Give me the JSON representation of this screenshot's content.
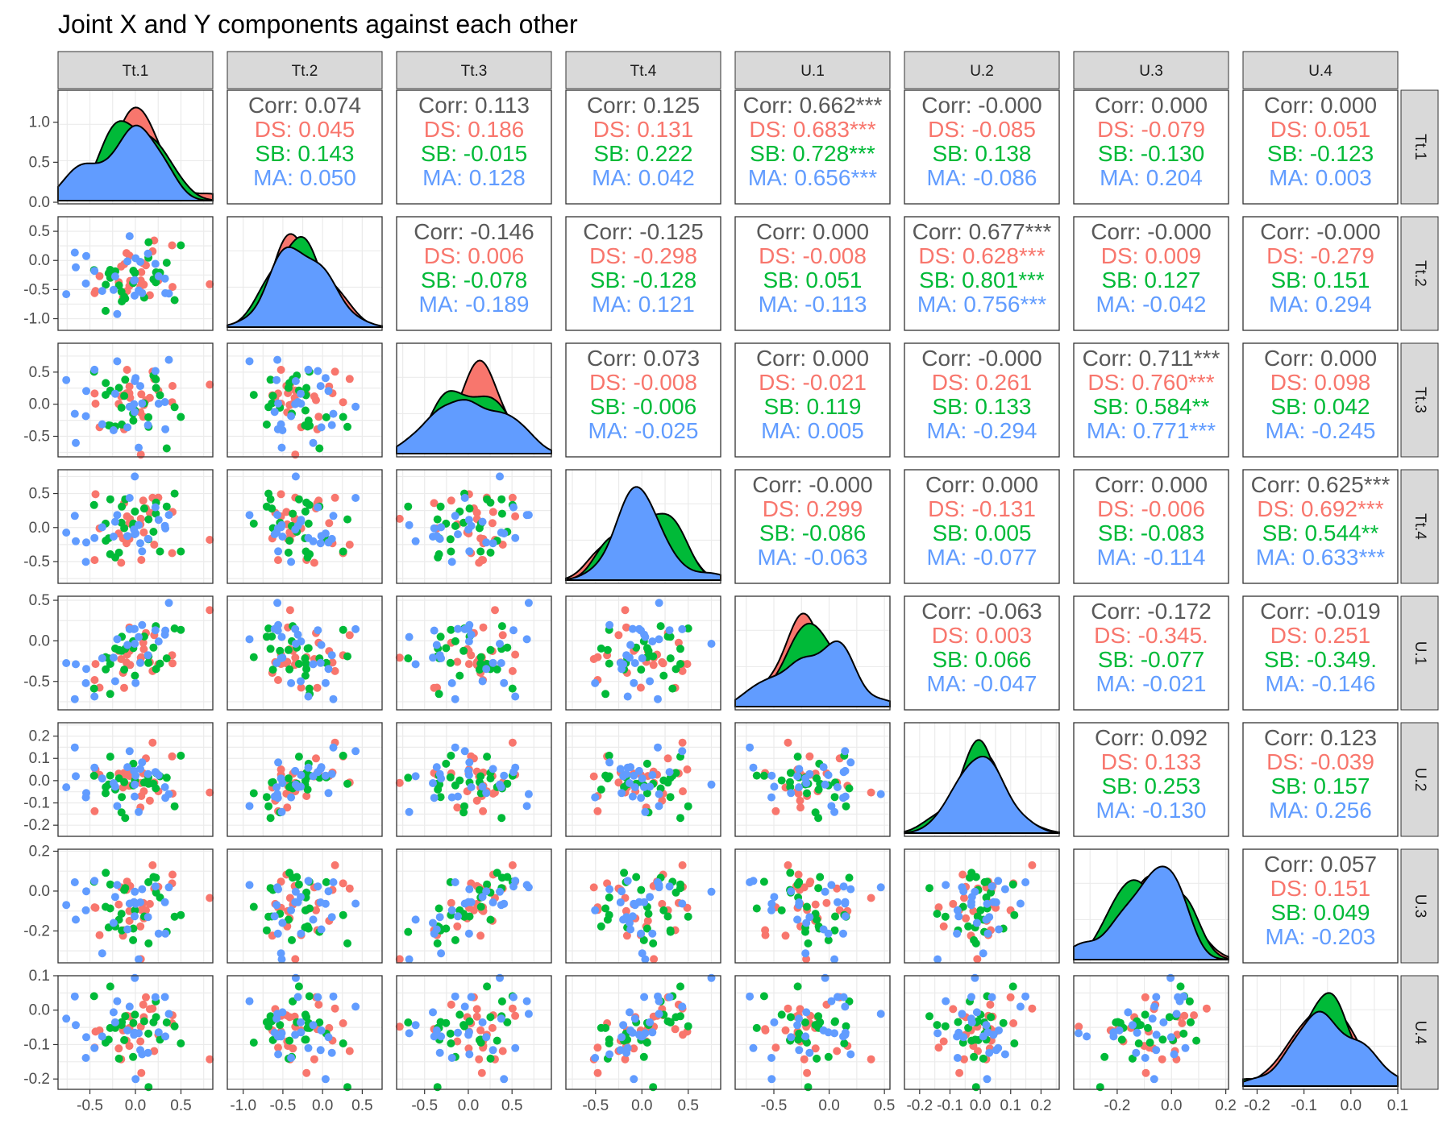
{
  "title": "Joint X and Y components against each other",
  "variables": [
    "Tt.1",
    "Tt.2",
    "Tt.3",
    "Tt.4",
    "U.1",
    "U.2",
    "U.3",
    "U.4"
  ],
  "groups": [
    {
      "name": "DS",
      "color": "#F8766D"
    },
    {
      "name": "SB",
      "color": "#00BA38"
    },
    {
      "name": "MA",
      "color": "#619CFF"
    }
  ],
  "corr_label": "Corr",
  "corr_color": "#595959",
  "chart_data": {
    "type": "scatter",
    "layout": "scatterplot-matrix",
    "grid": true,
    "variables": [
      "Tt.1",
      "Tt.2",
      "Tt.3",
      "Tt.4",
      "U.1",
      "U.2",
      "U.3",
      "U.4"
    ],
    "axes": {
      "Tt.1": {
        "range": [
          -0.85,
          0.85
        ],
        "ticks": [
          "-0.5",
          "0.0",
          "0.5"
        ],
        "density_ticks": [
          "0.0",
          "0.5",
          "1.0"
        ],
        "density_range": [
          -0.02,
          1.4
        ]
      },
      "Tt.2": {
        "range": [
          -1.2,
          0.75
        ],
        "ticks": [
          "-1.0",
          "-0.5",
          "0.0",
          "0.5"
        ]
      },
      "Tt.3": {
        "range": [
          -0.82,
          0.95
        ],
        "ticks": [
          "-0.5",
          "0.0",
          "0.5"
        ]
      },
      "Tt.4": {
        "range": [
          -0.82,
          0.85
        ],
        "ticks": [
          "-0.5",
          "0.0",
          "0.5"
        ]
      },
      "U.1": {
        "range": [
          -0.85,
          0.55
        ],
        "ticks": [
          "-0.5",
          "0.0",
          "0.5"
        ]
      },
      "U.2": {
        "range": [
          -0.25,
          0.26
        ],
        "ticks": [
          "-0.2",
          "-0.1",
          "0.0",
          "0.1",
          "0.2"
        ]
      },
      "U.3": {
        "range": [
          -0.36,
          0.21
        ],
        "ticks": [
          "-0.2",
          "0.0",
          "0.2"
        ]
      },
      "U.4": {
        "range": [
          -0.23,
          0.1
        ],
        "ticks": [
          "-0.2",
          "-0.1",
          "0.0",
          "0.1"
        ]
      }
    },
    "correlations": [
      {
        "row": "Tt.1",
        "col": "Tt.2",
        "Corr": "0.074",
        "DS": "0.045",
        "SB": "0.143",
        "MA": "0.050"
      },
      {
        "row": "Tt.1",
        "col": "Tt.3",
        "Corr": "0.113",
        "DS": "0.186",
        "SB": "-0.015",
        "MA": "0.128"
      },
      {
        "row": "Tt.1",
        "col": "Tt.4",
        "Corr": "0.125",
        "DS": "0.131",
        "SB": "0.222",
        "MA": "0.042"
      },
      {
        "row": "Tt.1",
        "col": "U.1",
        "Corr": "0.662***",
        "DS": "0.683***",
        "SB": "0.728***",
        "MA": "0.656***"
      },
      {
        "row": "Tt.1",
        "col": "U.2",
        "Corr": "-0.000",
        "DS": "-0.085",
        "SB": "0.138",
        "MA": "-0.086"
      },
      {
        "row": "Tt.1",
        "col": "U.3",
        "Corr": "0.000",
        "DS": "-0.079",
        "SB": "-0.130",
        "MA": "0.204"
      },
      {
        "row": "Tt.1",
        "col": "U.4",
        "Corr": "0.000",
        "DS": "0.051",
        "SB": "-0.123",
        "MA": "0.003"
      },
      {
        "row": "Tt.2",
        "col": "Tt.3",
        "Corr": "-0.146",
        "DS": "0.006",
        "SB": "-0.078",
        "MA": "-0.189"
      },
      {
        "row": "Tt.2",
        "col": "Tt.4",
        "Corr": "-0.125",
        "DS": "-0.298",
        "SB": "-0.128",
        "MA": "0.121"
      },
      {
        "row": "Tt.2",
        "col": "U.1",
        "Corr": "0.000",
        "DS": "-0.008",
        "SB": "0.051",
        "MA": "-0.113"
      },
      {
        "row": "Tt.2",
        "col": "U.2",
        "Corr": "0.677***",
        "DS": "0.628***",
        "SB": "0.801***",
        "MA": "0.756***"
      },
      {
        "row": "Tt.2",
        "col": "U.3",
        "Corr": "-0.000",
        "DS": "0.009",
        "SB": "0.127",
        "MA": "-0.042"
      },
      {
        "row": "Tt.2",
        "col": "U.4",
        "Corr": "-0.000",
        "DS": "-0.279",
        "SB": "0.151",
        "MA": "0.294"
      },
      {
        "row": "Tt.3",
        "col": "Tt.4",
        "Corr": "0.073",
        "DS": "-0.008",
        "SB": "-0.006",
        "MA": "-0.025"
      },
      {
        "row": "Tt.3",
        "col": "U.1",
        "Corr": "0.000",
        "DS": "-0.021",
        "SB": "0.119",
        "MA": "0.005"
      },
      {
        "row": "Tt.3",
        "col": "U.2",
        "Corr": "-0.000",
        "DS": "0.261",
        "SB": "0.133",
        "MA": "-0.294"
      },
      {
        "row": "Tt.3",
        "col": "U.3",
        "Corr": "0.711***",
        "DS": "0.760***",
        "SB": "0.584**",
        "MA": "0.771***"
      },
      {
        "row": "Tt.3",
        "col": "U.4",
        "Corr": "0.000",
        "DS": "0.098",
        "SB": "0.042",
        "MA": "-0.245"
      },
      {
        "row": "Tt.4",
        "col": "U.1",
        "Corr": "-0.000",
        "DS": "0.299",
        "SB": "-0.086",
        "MA": "-0.063"
      },
      {
        "row": "Tt.4",
        "col": "U.2",
        "Corr": "0.000",
        "DS": "-0.131",
        "SB": "0.005",
        "MA": "-0.077"
      },
      {
        "row": "Tt.4",
        "col": "U.3",
        "Corr": "0.000",
        "DS": "-0.006",
        "SB": "-0.083",
        "MA": "-0.114"
      },
      {
        "row": "Tt.4",
        "col": "U.4",
        "Corr": "0.625***",
        "DS": "0.692***",
        "SB": "0.544**",
        "MA": "0.633***"
      },
      {
        "row": "U.1",
        "col": "U.2",
        "Corr": "-0.063",
        "DS": "0.003",
        "SB": "0.066",
        "MA": "-0.047"
      },
      {
        "row": "U.1",
        "col": "U.3",
        "Corr": "-0.172",
        "DS": "-0.345.",
        "SB": "-0.077",
        "MA": "-0.021"
      },
      {
        "row": "U.1",
        "col": "U.4",
        "Corr": "-0.019",
        "DS": "0.251",
        "SB": "-0.349.",
        "MA": "-0.146"
      },
      {
        "row": "U.2",
        "col": "U.3",
        "Corr": "0.092",
        "DS": "0.133",
        "SB": "0.253",
        "MA": "-0.130"
      },
      {
        "row": "U.2",
        "col": "U.4",
        "Corr": "0.123",
        "DS": "-0.039",
        "SB": "0.157",
        "MA": "0.256"
      },
      {
        "row": "U.3",
        "col": "U.4",
        "Corr": "0.057",
        "DS": "0.151",
        "SB": "0.049",
        "MA": "-0.203"
      }
    ]
  }
}
